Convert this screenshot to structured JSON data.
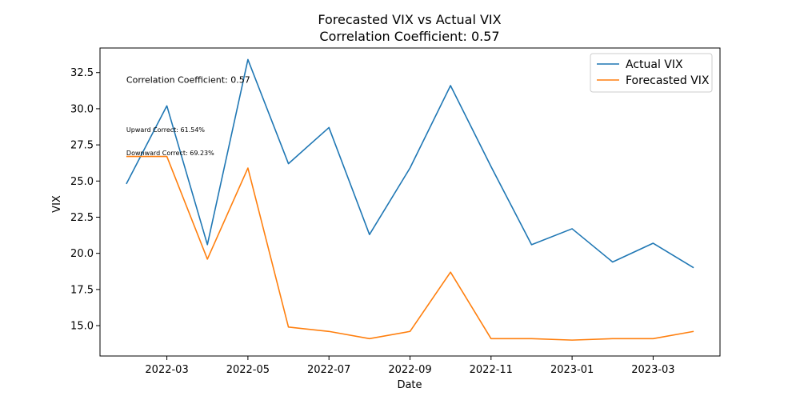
{
  "chart_data": {
    "type": "line",
    "title": "Forecasted VIX vs Actual VIX",
    "subtitle": "Correlation Coefficient: 0.57",
    "xlabel": "Date",
    "ylabel": "VIX",
    "x": [
      "2022-02",
      "2022-03",
      "2022-04",
      "2022-05",
      "2022-06",
      "2022-07",
      "2022-08",
      "2022-09",
      "2022-10",
      "2022-11",
      "2022-12",
      "2023-01",
      "2023-02",
      "2023-03",
      "2023-04"
    ],
    "x_ticks": [
      "2022-03",
      "2022-05",
      "2022-07",
      "2022-09",
      "2022-11",
      "2023-01",
      "2023-03"
    ],
    "y_ticks": [
      "15.0",
      "17.5",
      "20.0",
      "22.5",
      "25.0",
      "27.5",
      "30.0",
      "32.5"
    ],
    "ylim": [
      12.9,
      34.2
    ],
    "grid": false,
    "legend_position": "top-right",
    "series": [
      {
        "name": "Actual VIX",
        "color": "#1f77b4",
        "values": [
          24.8,
          30.2,
          20.6,
          33.4,
          26.2,
          28.7,
          21.3,
          25.9,
          31.6,
          26.0,
          20.6,
          21.7,
          19.4,
          20.7,
          19.0
        ]
      },
      {
        "name": "Forecasted VIX",
        "color": "#ff7f0e",
        "values": [
          26.7,
          26.7,
          19.6,
          25.9,
          14.9,
          14.6,
          14.1,
          14.6,
          18.7,
          14.1,
          14.1,
          14.0,
          14.1,
          14.1,
          14.6
        ]
      }
    ],
    "annotations": [
      {
        "text": "Correlation Coefficient: 0.57",
        "y": 31.8,
        "size": "medium"
      },
      {
        "text": "Upward Correct: 61.54%",
        "y": 28.4,
        "size": "small"
      },
      {
        "text": "Downward Correct: 69.23%",
        "y": 26.8,
        "size": "small"
      }
    ]
  }
}
